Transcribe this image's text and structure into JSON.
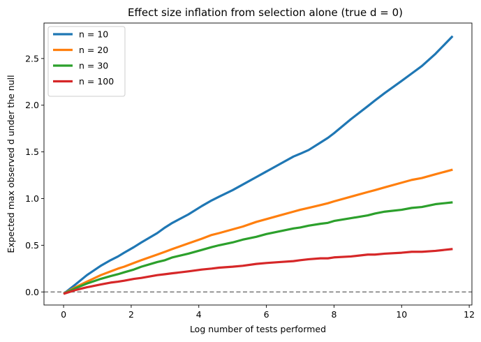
{
  "chart_data": {
    "type": "line",
    "title": "Effect size inflation from selection alone (true d = 0)",
    "xlabel": "Log number of tests performed",
    "ylabel": "Expected max observed d under the null",
    "xlim": [
      -0.58,
      12.08
    ],
    "ylim": [
      -0.14,
      2.88
    ],
    "xticks": [
      0,
      2,
      4,
      6,
      8,
      10,
      12
    ],
    "xtick_labels": [
      "0",
      "2",
      "4",
      "6",
      "8",
      "10",
      "12"
    ],
    "yticks": [
      0.0,
      0.5,
      1.0,
      1.5,
      2.0,
      2.5
    ],
    "ytick_labels": [
      "0.0",
      "0.5",
      "1.0",
      "1.5",
      "2.0",
      "2.5"
    ],
    "grid": false,
    "legend_position": "top-left",
    "reference_line": {
      "y": 0,
      "style": "dashed",
      "color": "#808080"
    },
    "x": [
      0,
      0.35,
      0.69,
      1.1,
      1.39,
      1.61,
      1.79,
      2.08,
      2.3,
      2.77,
      3.0,
      3.22,
      3.69,
      4.09,
      4.38,
      4.6,
      5.0,
      5.3,
      5.7,
      6.0,
      6.4,
      6.8,
      7.0,
      7.25,
      7.6,
      7.82,
      8.0,
      8.5,
      9.0,
      9.21,
      9.5,
      10.0,
      10.3,
      10.6,
      11.0,
      11.51
    ],
    "series": [
      {
        "name": "n = 10",
        "color": "#1f77b4",
        "values": [
          -0.02,
          0.08,
          0.18,
          0.28,
          0.34,
          0.38,
          0.42,
          0.48,
          0.53,
          0.63,
          0.69,
          0.74,
          0.83,
          0.92,
          0.98,
          1.02,
          1.09,
          1.15,
          1.23,
          1.29,
          1.37,
          1.45,
          1.48,
          1.52,
          1.6,
          1.65,
          1.7,
          1.85,
          1.99,
          2.05,
          2.13,
          2.26,
          2.34,
          2.42,
          2.55,
          2.74
        ]
      },
      {
        "name": "n = 20",
        "color": "#ff7f0e",
        "values": [
          -0.02,
          0.05,
          0.11,
          0.18,
          0.22,
          0.25,
          0.27,
          0.31,
          0.34,
          0.4,
          0.43,
          0.46,
          0.52,
          0.57,
          0.61,
          0.63,
          0.67,
          0.7,
          0.75,
          0.78,
          0.82,
          0.86,
          0.88,
          0.9,
          0.93,
          0.95,
          0.97,
          1.02,
          1.07,
          1.09,
          1.12,
          1.17,
          1.2,
          1.22,
          1.26,
          1.31
        ]
      },
      {
        "name": "n = 30",
        "color": "#2ca02c",
        "values": [
          -0.02,
          0.04,
          0.09,
          0.14,
          0.17,
          0.19,
          0.21,
          0.24,
          0.27,
          0.32,
          0.34,
          0.37,
          0.41,
          0.45,
          0.48,
          0.5,
          0.53,
          0.56,
          0.59,
          0.62,
          0.65,
          0.68,
          0.69,
          0.71,
          0.73,
          0.74,
          0.76,
          0.79,
          0.82,
          0.84,
          0.86,
          0.88,
          0.9,
          0.91,
          0.94,
          0.96
        ]
      },
      {
        "name": "n = 100",
        "color": "#d62728",
        "values": [
          -0.02,
          0.02,
          0.05,
          0.08,
          0.1,
          0.11,
          0.12,
          0.14,
          0.15,
          0.18,
          0.19,
          0.2,
          0.22,
          0.24,
          0.25,
          0.26,
          0.27,
          0.28,
          0.3,
          0.31,
          0.32,
          0.33,
          0.34,
          0.35,
          0.36,
          0.36,
          0.37,
          0.38,
          0.4,
          0.4,
          0.41,
          0.42,
          0.43,
          0.43,
          0.44,
          0.46
        ]
      }
    ]
  }
}
